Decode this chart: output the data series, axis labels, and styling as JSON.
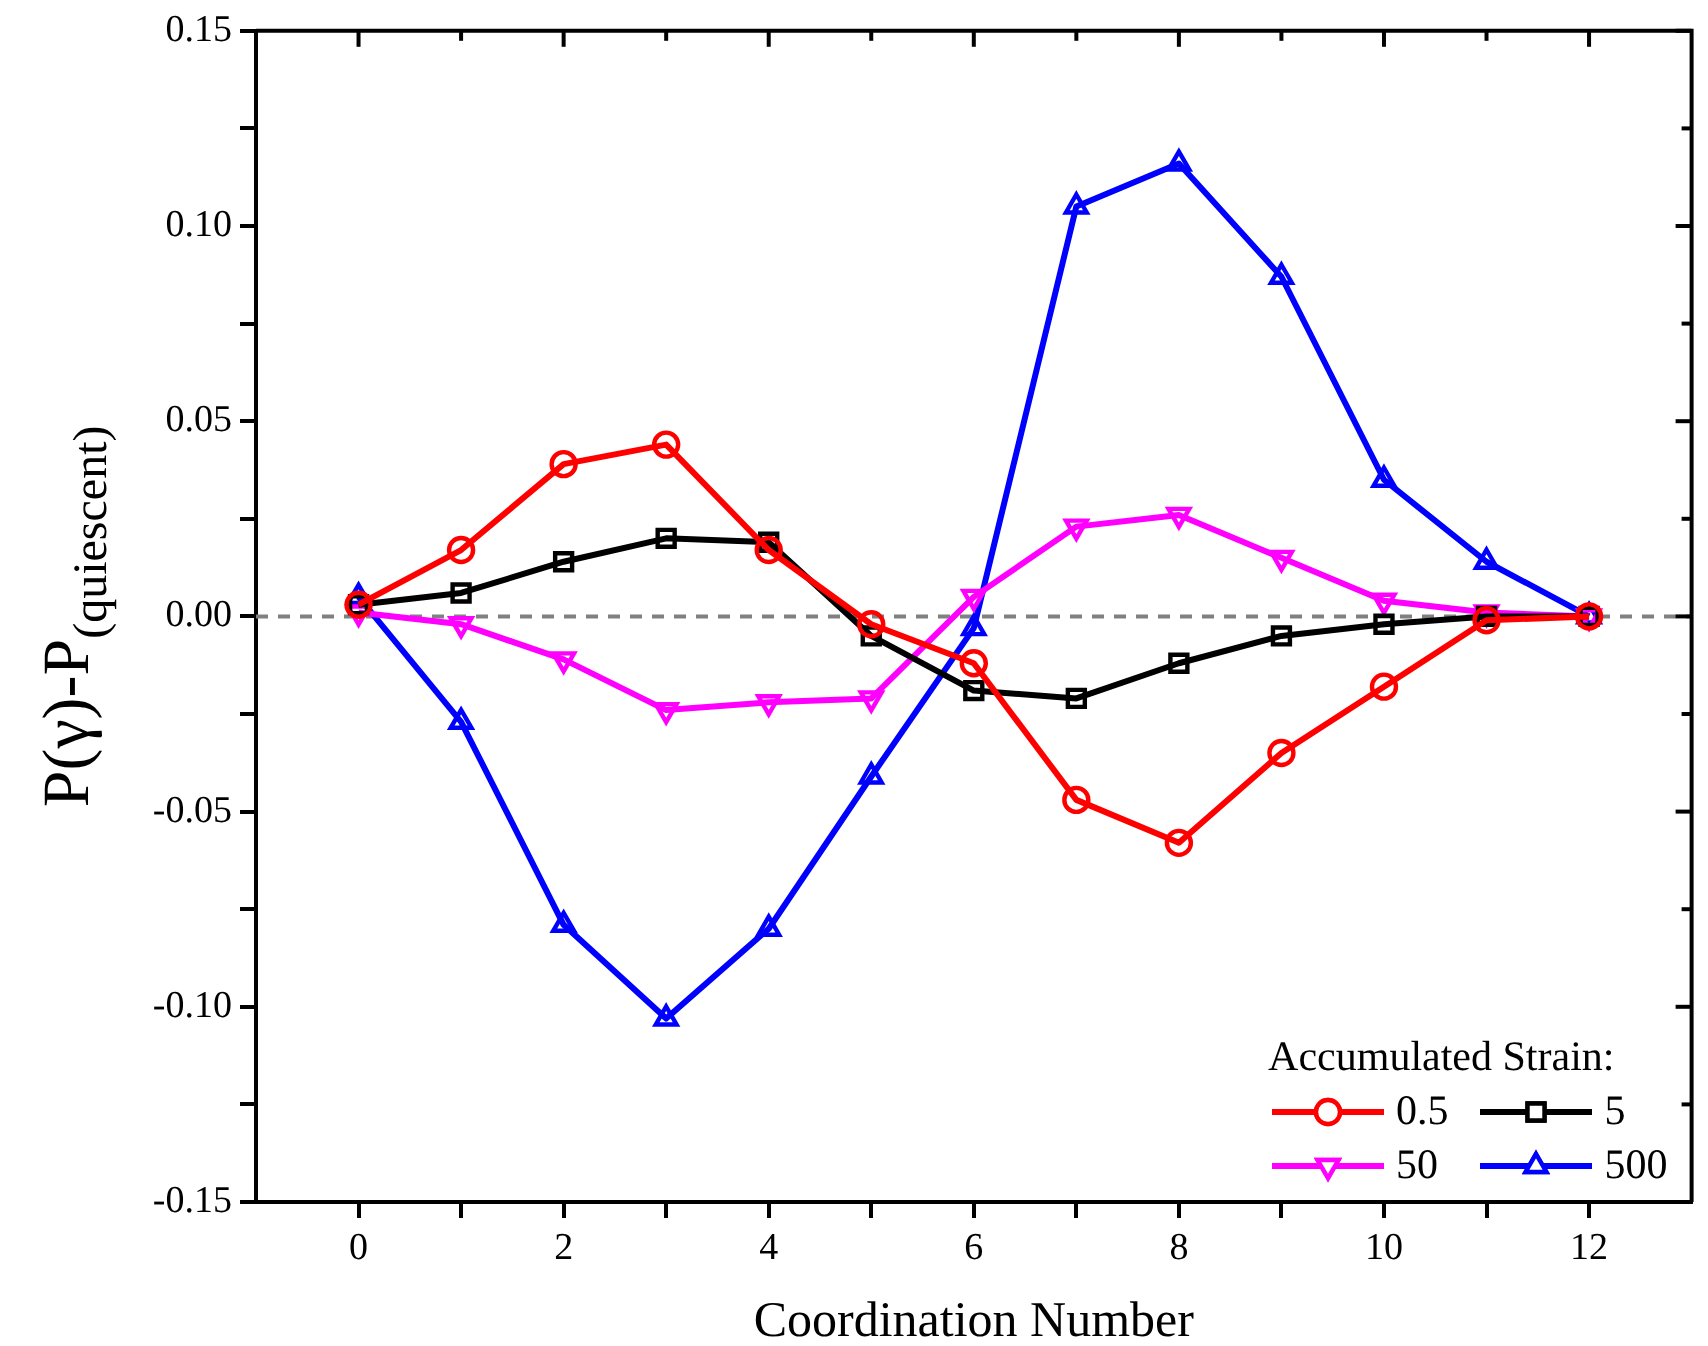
{
  "chart_data": {
    "type": "line",
    "xlabel": "Coordination Number",
    "ylabel": "P(γ)-P$_{(quiescent)}$",
    "legend_title": "Accumulated Strain:",
    "legend": "bottom right",
    "x": [
      0,
      1,
      2,
      3,
      4,
      5,
      6,
      7,
      8,
      9,
      10,
      11,
      12
    ],
    "xlim": [
      -1,
      13
    ],
    "xticks": [
      0,
      {
        "value": 1,
        "label": null
      },
      2,
      {
        "value": 3,
        "label": null
      },
      4,
      {
        "value": 5,
        "label": null
      },
      6,
      {
        "value": 7,
        "label": null
      },
      8,
      {
        "value": 9,
        "label": null
      },
      10,
      {
        "value": 11,
        "label": null
      },
      12
    ],
    "ylim": [
      -0.15,
      0.15
    ],
    "yticks": [
      {
        "value": -0.15,
        "label": "-0.15"
      },
      {
        "value": -0.125,
        "label": null
      },
      {
        "value": -0.1,
        "label": "-0.10"
      },
      {
        "value": -0.075,
        "label": null
      },
      {
        "value": -0.05,
        "label": "-0.05"
      },
      {
        "value": -0.025,
        "label": null
      },
      {
        "value": 0,
        "label": "0.00"
      },
      {
        "value": 0.025,
        "label": null
      },
      {
        "value": 0.05,
        "label": "0.05"
      },
      {
        "value": 0.075,
        "label": null
      },
      {
        "value": 0.1,
        "label": "0.10"
      },
      {
        "value": 0.125,
        "label": null
      },
      {
        "value": 0.15,
        "label": "0.15"
      }
    ],
    "grid": false,
    "line_style": "solid",
    "ref_lines": [
      {
        "axis": "y",
        "value": 0,
        "color": "#808080",
        "line_style": "dashed"
      }
    ],
    "series": [
      {
        "name": "0.5",
        "color": "#ff0000",
        "marker": "circle",
        "values": [
          0.003,
          0.017,
          0.039,
          0.044,
          0.017,
          -0.002,
          -0.012,
          -0.047,
          -0.058,
          -0.035,
          -0.018,
          -0.001,
          0
        ]
      },
      {
        "name": "5",
        "color": "#000000",
        "marker": "square",
        "values": [
          0.003,
          0.006,
          0.014,
          0.02,
          0.019,
          -0.005,
          -0.019,
          -0.021,
          -0.012,
          -0.005,
          -0.002,
          0,
          0
        ]
      },
      {
        "name": "50",
        "color": "#ff00ff",
        "marker": "triangle_down",
        "values": [
          0.001,
          -0.002,
          -0.011,
          -0.024,
          -0.022,
          -0.021,
          0.005,
          0.023,
          0.026,
          0.015,
          0.004,
          0.001,
          0
        ]
      },
      {
        "name": "500",
        "color": "#0000ff",
        "marker": "triangle",
        "values": [
          0.005,
          -0.027,
          -0.079,
          -0.103,
          -0.08,
          -0.041,
          -0.003,
          0.105,
          0.116,
          0.087,
          0.035,
          0.014,
          0
        ]
      }
    ]
  }
}
